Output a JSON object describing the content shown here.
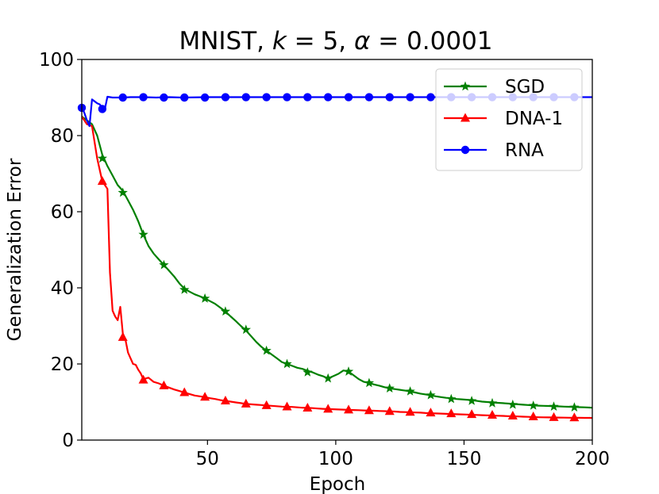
{
  "chart_data": {
    "type": "line",
    "title": "MNIST, k = 5, α = 0.0001",
    "title_parts": {
      "prefix": "MNIST, ",
      "k_symbol": "k",
      "k_value": " = 5, ",
      "alpha_symbol": "α",
      "alpha_value": " = 0.0001"
    },
    "xlabel": "Epoch",
    "ylabel": "Generalization Error",
    "xlim": [
      1,
      200
    ],
    "ylim": [
      0,
      100
    ],
    "xticks": [
      50,
      100,
      150,
      200
    ],
    "xtick_labels": [
      "50",
      "100",
      "150",
      "200"
    ],
    "yticks": [
      0,
      20,
      40,
      60,
      80,
      100
    ],
    "ytick_labels": [
      "0",
      "20",
      "40",
      "60",
      "80",
      "100"
    ],
    "legend_position": "upper-right",
    "series": [
      {
        "name": "SGD",
        "color": "#008000",
        "marker": "star",
        "x": [
          1,
          3,
          5,
          7,
          9,
          11,
          13,
          15,
          17,
          19,
          21,
          23,
          25,
          27,
          29,
          31,
          33,
          35,
          37,
          39,
          41,
          43,
          45,
          47,
          49,
          51,
          53,
          55,
          57,
          59,
          61,
          63,
          65,
          67,
          69,
          71,
          73,
          75,
          77,
          79,
          81,
          83,
          85,
          87,
          89,
          91,
          93,
          95,
          97,
          99,
          101,
          103,
          105,
          107,
          109,
          111,
          113,
          115,
          117,
          119,
          121,
          123,
          125,
          127,
          129,
          131,
          133,
          135,
          137,
          139,
          141,
          143,
          145,
          147,
          149,
          151,
          153,
          155,
          157,
          159,
          161,
          163,
          165,
          167,
          169,
          171,
          173,
          175,
          177,
          179,
          181,
          183,
          185,
          187,
          189,
          191,
          193,
          195,
          197,
          199,
          200
        ],
        "y": [
          85,
          84,
          83,
          80,
          75,
          72,
          69.5,
          67,
          65.5,
          63,
          60.5,
          57.5,
          54,
          51,
          49,
          47.5,
          46,
          44.5,
          43,
          41.2,
          39.8,
          39,
          38.3,
          37.8,
          37.2,
          36.5,
          35.8,
          34.8,
          33.8,
          32.5,
          31.3,
          30,
          28.8,
          27.3,
          25.8,
          24.5,
          23.5,
          22.5,
          21.5,
          20.5,
          20,
          19.5,
          19,
          18.7,
          18.2,
          17.8,
          17.2,
          16.8,
          16.2,
          16.8,
          17.4,
          18.3,
          18,
          17,
          16,
          15.3,
          15,
          14.6,
          14.3,
          13.9,
          13.6,
          13.4,
          13.2,
          13,
          12.8,
          12.5,
          12.2,
          12,
          11.8,
          11.5,
          11.3,
          11.1,
          11,
          10.8,
          10.7,
          10.6,
          10.5,
          10.3,
          10.1,
          10,
          9.9,
          9.8,
          9.7,
          9.6,
          9.5,
          9.4,
          9.3,
          9.2,
          9.1,
          9.05,
          9,
          8.95,
          8.9,
          8.85,
          8.8,
          8.75,
          8.7,
          8.65,
          8.6,
          8.55,
          8.5
        ],
        "markers_x": [
          9,
          17,
          25,
          33,
          41,
          49,
          57,
          65,
          73,
          81,
          89,
          97,
          105,
          113,
          121,
          129,
          137,
          145,
          153,
          161,
          169,
          177,
          185,
          193
        ],
        "markers_y": [
          74,
          65,
          54,
          46,
          39.5,
          37.2,
          33.8,
          29,
          23.5,
          20,
          17.8,
          16.2,
          18,
          15,
          13.6,
          12.8,
          11.8,
          10.8,
          10.3,
          9.7,
          9.3,
          9.05,
          8.8,
          8.6
        ]
      },
      {
        "name": "DNA-1",
        "color": "#ff0000",
        "marker": "triangle",
        "x": [
          1,
          3,
          5,
          7,
          9,
          10,
          11,
          12,
          13,
          14,
          15,
          16,
          17,
          18,
          19,
          20,
          21,
          22,
          23,
          24,
          25,
          27,
          29,
          31,
          33,
          35,
          37,
          39,
          41,
          43,
          45,
          47,
          49,
          51,
          53,
          55,
          57,
          59,
          61,
          63,
          65,
          67,
          69,
          71,
          73,
          75,
          77,
          79,
          81,
          83,
          85,
          87,
          89,
          91,
          93,
          95,
          97,
          99,
          101,
          103,
          105,
          107,
          109,
          111,
          113,
          115,
          117,
          119,
          121,
          123,
          125,
          127,
          129,
          131,
          133,
          135,
          137,
          139,
          141,
          143,
          145,
          147,
          149,
          151,
          153,
          155,
          157,
          159,
          161,
          163,
          165,
          167,
          169,
          171,
          173,
          175,
          177,
          179,
          181,
          183,
          185,
          187,
          189,
          191,
          193,
          195,
          197,
          199,
          200
        ],
        "y": [
          85,
          83,
          82.5,
          74,
          68,
          67,
          66,
          44,
          34,
          32.5,
          31.5,
          35,
          28,
          26.5,
          23,
          21.5,
          20,
          19.8,
          18.5,
          17.5,
          16,
          16.4,
          15.3,
          14.9,
          14.3,
          13.8,
          13.3,
          12.9,
          12.5,
          12.1,
          11.7,
          11.5,
          11.3,
          11,
          10.8,
          10.5,
          10.3,
          10.1,
          9.9,
          9.7,
          9.5,
          9.4,
          9.3,
          9.2,
          9.1,
          9,
          8.9,
          8.8,
          8.75,
          8.7,
          8.6,
          8.5,
          8.45,
          8.4,
          8.3,
          8.2,
          8.15,
          8.1,
          8.05,
          8,
          7.95,
          7.9,
          7.85,
          7.8,
          7.75,
          7.7,
          7.65,
          7.6,
          7.55,
          7.5,
          7.4,
          7.35,
          7.3,
          7.25,
          7.2,
          7.1,
          7.05,
          7,
          6.95,
          6.9,
          6.85,
          6.8,
          6.75,
          6.7,
          6.65,
          6.6,
          6.55,
          6.5,
          6.45,
          6.4,
          6.35,
          6.3,
          6.25,
          6.2,
          6.15,
          6.1,
          6.05,
          6,
          5.98,
          5.96,
          5.94,
          5.92,
          5.9,
          5.88,
          5.86,
          5.85,
          5.84,
          5.83,
          5.82
        ],
        "markers_x": [
          9,
          17,
          25,
          33,
          41,
          49,
          57,
          65,
          73,
          81,
          89,
          97,
          105,
          113,
          121,
          129,
          137,
          145,
          153,
          161,
          169,
          177,
          185,
          193
        ],
        "markers_y": [
          68,
          27,
          15.8,
          14.3,
          12.5,
          11.3,
          10.3,
          9.5,
          9.1,
          8.75,
          8.45,
          8.15,
          7.95,
          7.75,
          7.55,
          7.35,
          7.15,
          6.95,
          6.75,
          6.55,
          6.35,
          6.15,
          5.96,
          5.88
        ]
      },
      {
        "name": "RNA",
        "color": "#0000ff",
        "marker": "circle",
        "x": [
          1,
          2,
          3,
          4,
          5,
          6,
          7,
          8,
          9,
          10,
          11,
          12,
          13,
          15,
          17,
          20,
          25,
          30,
          35,
          40,
          50,
          60,
          80,
          100,
          120,
          140,
          160,
          180,
          200
        ],
        "y": [
          87.5,
          86,
          84,
          82.5,
          89.5,
          89,
          88.5,
          88.2,
          87.3,
          87,
          90.2,
          90.1,
          90,
          90,
          90,
          90.1,
          90.1,
          90,
          90.1,
          90,
          90.1,
          90.1,
          90.1,
          90.1,
          90.1,
          90.1,
          90.1,
          90.1,
          90.1
        ],
        "markers_x": [
          1,
          9,
          17,
          25,
          33,
          41,
          49,
          57,
          65,
          73,
          81,
          89,
          97,
          105,
          113,
          121,
          129,
          137,
          145,
          153,
          161,
          169,
          177,
          185,
          193
        ],
        "markers_y": [
          87.3,
          87,
          90,
          90.1,
          90,
          90,
          90,
          90.1,
          90.1,
          90.1,
          90.1,
          90.1,
          90.1,
          90.1,
          90.1,
          90.1,
          90.1,
          90.1,
          90.1,
          90.1,
          90.1,
          90.1,
          90.1,
          90.1,
          90.1
        ]
      }
    ]
  }
}
